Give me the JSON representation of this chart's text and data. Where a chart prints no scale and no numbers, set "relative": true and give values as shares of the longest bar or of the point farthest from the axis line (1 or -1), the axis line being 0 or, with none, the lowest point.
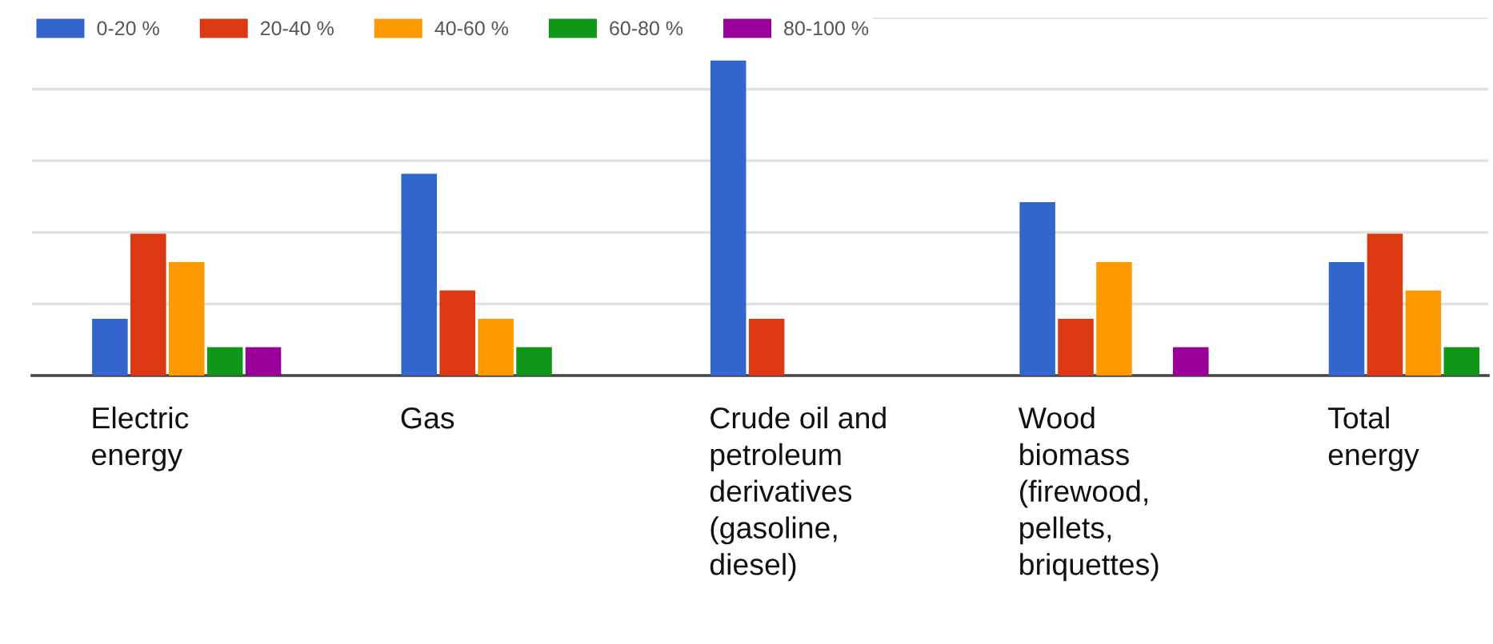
{
  "chart_data": {
    "type": "bar",
    "relative": true,
    "grid": "y",
    "legend": "top left",
    "categories": [
      "Electric\nenergy",
      "Gas",
      "Crude oil and\npetroleum\nderivatives\n(gasoline,\ndiesel)",
      "Wood\nbiomass\n(firewood,\npellets,\nbriquettes)",
      "Total\nenergy"
    ],
    "series": [
      {
        "name": "0-20 %",
        "color": "#3366cc",
        "values": [
          0.18,
          0.64,
          1,
          0.55,
          0.36
        ]
      },
      {
        "name": "20-40 %",
        "color": "#dc3912",
        "values": [
          0.45,
          0.27,
          0.18,
          0.18,
          0.45
        ]
      },
      {
        "name": "40-60 %",
        "color": "#ff9900",
        "values": [
          0.36,
          0.18,
          0,
          0.36,
          0.27
        ]
      },
      {
        "name": "60-80 %",
        "color": "#109618",
        "values": [
          0.09,
          0.09,
          0,
          0,
          0.09
        ]
      },
      {
        "name": "80-100 %",
        "color": "#990099",
        "values": [
          0.09,
          0,
          0,
          0.09,
          0
        ]
      }
    ]
  }
}
